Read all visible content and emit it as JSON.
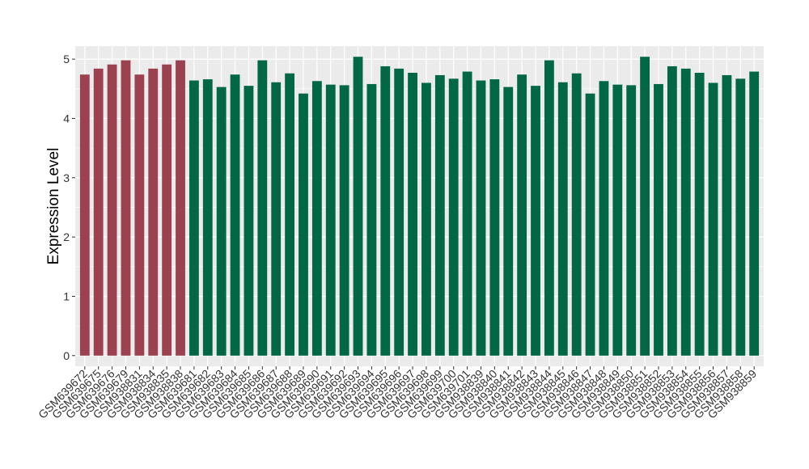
{
  "chart_data": {
    "type": "bar",
    "title": "",
    "xlabel": "",
    "ylabel": "Expression Level",
    "ylim": [
      -0.18,
      5.22
    ],
    "yticks": [
      0,
      1,
      2,
      3,
      4,
      5
    ],
    "grid": true,
    "legend": "none",
    "colors": {
      "group_a": "#9b4150",
      "group_b": "#016745",
      "panel": "#ebebeb",
      "gridline": "#ffffff"
    },
    "categories": [
      "GSM639672",
      "GSM639675",
      "GSM639676",
      "GSM639679",
      "GSM938831",
      "GSM938834",
      "GSM938835",
      "GSM938838",
      "GSM639681",
      "GSM639682",
      "GSM639683",
      "GSM639684",
      "GSM639685",
      "GSM639686",
      "GSM639687",
      "GSM639688",
      "GSM639689",
      "GSM639690",
      "GSM639691",
      "GSM639692",
      "GSM639693",
      "GSM639694",
      "GSM639695",
      "GSM639696",
      "GSM639697",
      "GSM639698",
      "GSM639699",
      "GSM639700",
      "GSM639701",
      "GSM938839",
      "GSM938840",
      "GSM938841",
      "GSM938842",
      "GSM938843",
      "GSM938844",
      "GSM938845",
      "GSM938846",
      "GSM938847",
      "GSM938848",
      "GSM938849",
      "GSM938850",
      "GSM938851",
      "GSM938852",
      "GSM938853",
      "GSM938854",
      "GSM938855",
      "GSM938856",
      "GSM938857",
      "GSM938858",
      "GSM938859"
    ],
    "values": [
      4.74,
      4.84,
      4.91,
      4.98,
      4.74,
      4.84,
      4.91,
      4.98,
      4.64,
      4.66,
      4.53,
      4.74,
      4.55,
      4.98,
      4.61,
      4.76,
      4.42,
      4.63,
      4.57,
      4.56,
      5.04,
      4.58,
      4.88,
      4.84,
      4.77,
      4.6,
      4.73,
      4.67,
      4.79,
      4.64,
      4.66,
      4.53,
      4.74,
      4.55,
      4.98,
      4.61,
      4.76,
      4.42,
      4.63,
      4.57,
      4.56,
      5.04,
      4.58,
      4.88,
      4.84,
      4.77,
      4.6,
      4.73,
      4.67,
      4.79
    ],
    "groups": [
      "a",
      "a",
      "a",
      "a",
      "a",
      "a",
      "a",
      "a",
      "b",
      "b",
      "b",
      "b",
      "b",
      "b",
      "b",
      "b",
      "b",
      "b",
      "b",
      "b",
      "b",
      "b",
      "b",
      "b",
      "b",
      "b",
      "b",
      "b",
      "b",
      "b",
      "b",
      "b",
      "b",
      "b",
      "b",
      "b",
      "b",
      "b",
      "b",
      "b",
      "b",
      "b",
      "b",
      "b",
      "b",
      "b",
      "b",
      "b",
      "b",
      "b"
    ]
  }
}
